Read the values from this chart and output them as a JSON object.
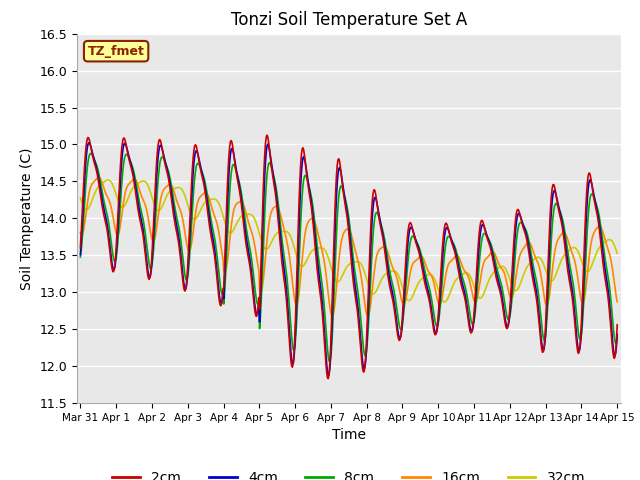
{
  "title": "Tonzi Soil Temperature Set A",
  "xlabel": "Time",
  "ylabel": "Soil Temperature (C)",
  "ylim": [
    11.5,
    16.5
  ],
  "yticks": [
    11.5,
    12.0,
    12.5,
    13.0,
    13.5,
    14.0,
    14.5,
    15.0,
    15.5,
    16.0,
    16.5
  ],
  "background_color": "#e8e8e8",
  "fig_background": "#ffffff",
  "label_box_text": "TZ_fmet",
  "label_box_bg": "#ffff99",
  "label_box_edge": "#882200",
  "lines": {
    "2cm": {
      "color": "#cc0000",
      "lw": 1.2
    },
    "4cm": {
      "color": "#0000cc",
      "lw": 1.2
    },
    "8cm": {
      "color": "#00aa00",
      "lw": 1.2
    },
    "16cm": {
      "color": "#ff8800",
      "lw": 1.2
    },
    "32cm": {
      "color": "#cccc00",
      "lw": 1.2
    }
  },
  "xtick_labels": [
    "Mar 31",
    "Apr 1",
    "Apr 2",
    "Apr 3",
    "Apr 4",
    "Apr 5",
    "Apr 6",
    "Apr 7",
    "Apr 8",
    "Apr 9",
    "Apr 10",
    "Apr 11",
    "Apr 12",
    "Apr 13",
    "Apr 14",
    "Apr 15"
  ],
  "legend_labels": [
    "2cm",
    "4cm",
    "8cm",
    "16cm",
    "32cm"
  ],
  "legend_colors": [
    "#cc0000",
    "#0000cc",
    "#00aa00",
    "#ff8800",
    "#cccc00"
  ]
}
